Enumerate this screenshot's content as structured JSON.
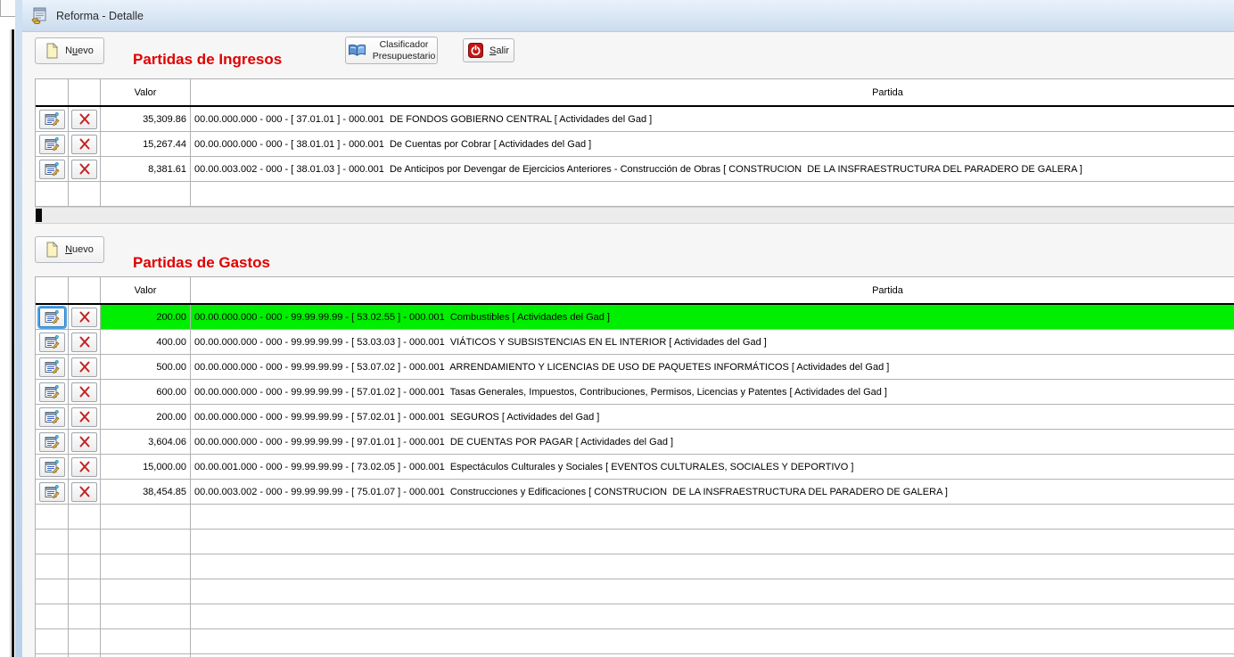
{
  "window": {
    "title": "Reforma - Detalle",
    "icon": "report-coins-icon"
  },
  "toolbar": {
    "clasificador": {
      "line1": "Clasificador",
      "line2": "Presupuestario",
      "icon": "open-book-icon"
    },
    "salir": {
      "label": "Salir",
      "mnemonic": "S",
      "icon": "power-icon"
    }
  },
  "row_actions": {
    "edit_icon": "edit-record-icon",
    "delete_icon": "delete-x-icon"
  },
  "colors": {
    "section-title": "#e00000",
    "selected-row-bg": "#00ef00",
    "titlebar-from": "#e9f2fb",
    "titlebar-to": "#ccdcee"
  },
  "sections": [
    {
      "name": "ingresos",
      "title": "Partidas de Ingresos",
      "new_button": {
        "label": "Nuevo",
        "mnemonic": "u",
        "icon": "new-document-icon"
      },
      "columns": [
        "Valor",
        "Partida"
      ],
      "selected_row": null,
      "empty_rows": 1,
      "rows": [
        {
          "valor": "35,309.86",
          "partida": "00.00.000.000 - 000 - [ 37.01.01 ] - 000.001  DE FONDOS GOBIERNO CENTRAL [ Actividades del Gad ]"
        },
        {
          "valor": "15,267.44",
          "partida": "00.00.000.000 - 000 - [ 38.01.01 ] - 000.001  De Cuentas por Cobrar [ Actividades del Gad ]"
        },
        {
          "valor": "8,381.61",
          "partida": "00.00.003.002 - 000 - [ 38.01.03 ] - 000.001  De Anticipos por Devengar de Ejercicios Anteriores - Construcción de Obras [ CONSTRUCION  DE LA INSFRAESTRUCTURA DEL PARADERO DE GALERA ]"
        }
      ]
    },
    {
      "name": "gastos",
      "title": "Partidas de Gastos",
      "new_button": {
        "label": "Nuevo",
        "mnemonic": "N",
        "icon": "new-document-icon"
      },
      "columns": [
        "Valor",
        "Partida"
      ],
      "selected_row": 0,
      "empty_rows": 7,
      "rows": [
        {
          "valor": "200.00",
          "partida": "00.00.000.000 - 000 - 99.99.99.99 - [ 53.02.55 ] - 000.001  Combustibles [ Actividades del Gad ]"
        },
        {
          "valor": "400.00",
          "partida": "00.00.000.000 - 000 - 99.99.99.99 - [ 53.03.03 ] - 000.001  VIÁTICOS Y SUBSISTENCIAS EN EL INTERIOR [ Actividades del Gad ]"
        },
        {
          "valor": "500.00",
          "partida": "00.00.000.000 - 000 - 99.99.99.99 - [ 53.07.02 ] - 000.001  ARRENDAMIENTO Y LICENCIAS DE USO DE PAQUETES INFORMÁTICOS [ Actividades del Gad ]"
        },
        {
          "valor": "600.00",
          "partida": "00.00.000.000 - 000 - 99.99.99.99 - [ 57.01.02 ] - 000.001  Tasas Generales, Impuestos, Contribuciones, Permisos, Licencias y Patentes [ Actividades del Gad ]"
        },
        {
          "valor": "200.00",
          "partida": "00.00.000.000 - 000 - 99.99.99.99 - [ 57.02.01 ] - 000.001  SEGUROS [ Actividades del Gad ]"
        },
        {
          "valor": "3,604.06",
          "partida": "00.00.000.000 - 000 - 99.99.99.99 - [ 97.01.01 ] - 000.001  DE CUENTAS POR PAGAR [ Actividades del Gad ]"
        },
        {
          "valor": "15,000.00",
          "partida": "00.00.001.000 - 000 - 99.99.99.99 - [ 73.02.05 ] - 000.001  Espectáculos Culturales y Sociales [ EVENTOS CULTURALES, SOCIALES Y DEPORTIVO ]"
        },
        {
          "valor": "38,454.85",
          "partida": "00.00.003.002 - 000 - 99.99.99.99 - [ 75.01.07 ] - 000.001  Construcciones y Edificaciones [ CONSTRUCION  DE LA INSFRAESTRUCTURA DEL PARADERO DE GALERA ]"
        }
      ]
    }
  ]
}
